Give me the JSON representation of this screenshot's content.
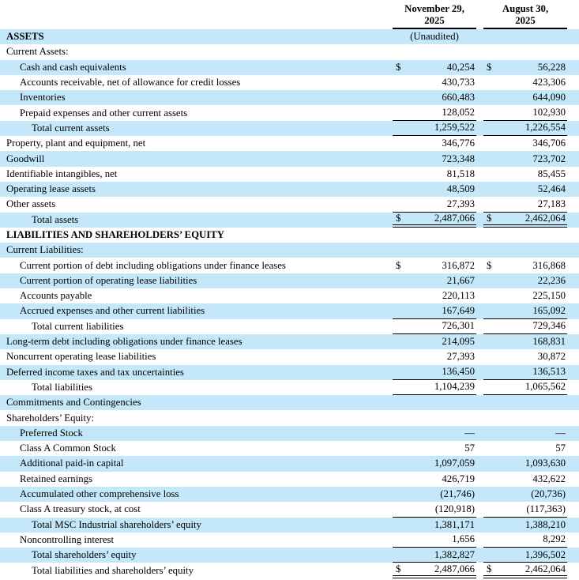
{
  "document": {
    "type": "condensed-consolidated-balance-sheet",
    "colors": {
      "row_highlight": "#c4e8fa",
      "rule": "#000000",
      "text": "#000000"
    },
    "table": {
      "columns": [
        {
          "line1": "November 29,",
          "line2": "2025"
        },
        {
          "line1": "August 30,",
          "line2": "2025"
        }
      ],
      "rows": [
        {
          "label": "ASSETS",
          "indent": 0,
          "bold": true,
          "shaded": true,
          "note1": "(Unaudited)",
          "d1": "",
          "v1": "",
          "d2": "",
          "v2": "",
          "rule": "none"
        },
        {
          "label": "Current Assets:",
          "indent": 0,
          "bold": false,
          "shaded": false,
          "d1": "",
          "v1": "",
          "d2": "",
          "v2": "",
          "rule": "none"
        },
        {
          "label": "Cash and cash equivalents",
          "indent": 1,
          "bold": false,
          "shaded": true,
          "d1": "$",
          "v1": "40,254",
          "d2": "$",
          "v2": "56,228",
          "rule": "none"
        },
        {
          "label": "Accounts receivable, net of allowance for credit losses",
          "indent": 1,
          "bold": false,
          "shaded": false,
          "d1": "",
          "v1": "430,733",
          "d2": "",
          "v2": "423,306",
          "rule": "none"
        },
        {
          "label": "Inventories",
          "indent": 1,
          "bold": false,
          "shaded": true,
          "d1": "",
          "v1": "660,483",
          "d2": "",
          "v2": "644,090",
          "rule": "none"
        },
        {
          "label": "Prepaid expenses and other current assets",
          "indent": 1,
          "bold": false,
          "shaded": false,
          "d1": "",
          "v1": "128,052",
          "d2": "",
          "v2": "102,930",
          "rule": "single"
        },
        {
          "label": "Total current assets",
          "indent": 2,
          "bold": false,
          "shaded": true,
          "d1": "",
          "v1": "1,259,522",
          "d2": "",
          "v2": "1,226,554",
          "rule": "single"
        },
        {
          "label": "Property, plant and equipment, net",
          "indent": 0,
          "bold": false,
          "shaded": false,
          "d1": "",
          "v1": "346,776",
          "d2": "",
          "v2": "346,706",
          "rule": "none"
        },
        {
          "label": "Goodwill",
          "indent": 0,
          "bold": false,
          "shaded": true,
          "d1": "",
          "v1": "723,348",
          "d2": "",
          "v2": "723,702",
          "rule": "none"
        },
        {
          "label": "Identifiable intangibles, net",
          "indent": 0,
          "bold": false,
          "shaded": false,
          "d1": "",
          "v1": "81,518",
          "d2": "",
          "v2": "85,455",
          "rule": "none"
        },
        {
          "label": "Operating lease assets",
          "indent": 0,
          "bold": false,
          "shaded": true,
          "d1": "",
          "v1": "48,509",
          "d2": "",
          "v2": "52,464",
          "rule": "none"
        },
        {
          "label": "Other assets",
          "indent": 0,
          "bold": false,
          "shaded": false,
          "d1": "",
          "v1": "27,393",
          "d2": "",
          "v2": "27,183",
          "rule": "single"
        },
        {
          "label": "Total assets",
          "indent": 2,
          "bold": false,
          "shaded": true,
          "d1": "$",
          "v1": "2,487,066",
          "d2": "$",
          "v2": "2,462,064",
          "rule": "double"
        },
        {
          "label": "LIABILITIES AND SHAREHOLDERS’ EQUITY",
          "indent": 0,
          "bold": true,
          "shaded": false,
          "d1": "",
          "v1": "",
          "d2": "",
          "v2": "",
          "rule": "none"
        },
        {
          "label": "Current Liabilities:",
          "indent": 0,
          "bold": false,
          "shaded": true,
          "d1": "",
          "v1": "",
          "d2": "",
          "v2": "",
          "rule": "none"
        },
        {
          "label": "Current portion of debt including obligations under finance leases",
          "indent": 1,
          "bold": false,
          "shaded": false,
          "d1": "$",
          "v1": "316,872",
          "d2": "$",
          "v2": "316,868",
          "rule": "none"
        },
        {
          "label": "Current portion of operating lease liabilities",
          "indent": 1,
          "bold": false,
          "shaded": true,
          "d1": "",
          "v1": "21,667",
          "d2": "",
          "v2": "22,236",
          "rule": "none"
        },
        {
          "label": "Accounts payable",
          "indent": 1,
          "bold": false,
          "shaded": false,
          "d1": "",
          "v1": "220,113",
          "d2": "",
          "v2": "225,150",
          "rule": "none"
        },
        {
          "label": "Accrued expenses and other current liabilities",
          "indent": 1,
          "bold": false,
          "shaded": true,
          "d1": "",
          "v1": "167,649",
          "d2": "",
          "v2": "165,092",
          "rule": "single"
        },
        {
          "label": "Total current liabilities",
          "indent": 2,
          "bold": false,
          "shaded": false,
          "d1": "",
          "v1": "726,301",
          "d2": "",
          "v2": "729,346",
          "rule": "single"
        },
        {
          "label": "Long-term debt including obligations under finance leases",
          "indent": 0,
          "bold": false,
          "shaded": true,
          "d1": "",
          "v1": "214,095",
          "d2": "",
          "v2": "168,831",
          "rule": "none"
        },
        {
          "label": "Noncurrent operating lease liabilities",
          "indent": 0,
          "bold": false,
          "shaded": false,
          "d1": "",
          "v1": "27,393",
          "d2": "",
          "v2": "30,872",
          "rule": "none"
        },
        {
          "label": "Deferred income taxes and tax uncertainties",
          "indent": 0,
          "bold": false,
          "shaded": true,
          "d1": "",
          "v1": "136,450",
          "d2": "",
          "v2": "136,513",
          "rule": "single"
        },
        {
          "label": "Total liabilities",
          "indent": 2,
          "bold": false,
          "shaded": false,
          "d1": "",
          "v1": "1,104,239",
          "d2": "",
          "v2": "1,065,562",
          "rule": "single"
        },
        {
          "label": "Commitments and Contingencies",
          "indent": 0,
          "bold": false,
          "shaded": true,
          "d1": "",
          "v1": "",
          "d2": "",
          "v2": "",
          "rule": "none"
        },
        {
          "label": "Shareholders’ Equity:",
          "indent": 0,
          "bold": false,
          "shaded": false,
          "d1": "",
          "v1": "",
          "d2": "",
          "v2": "",
          "rule": "none"
        },
        {
          "label": "Preferred Stock",
          "indent": 1,
          "bold": false,
          "shaded": true,
          "d1": "",
          "v1": "—",
          "d2": "",
          "v2": "—",
          "rule": "none"
        },
        {
          "label": "Class A Common Stock",
          "indent": 1,
          "bold": false,
          "shaded": false,
          "d1": "",
          "v1": "57",
          "d2": "",
          "v2": "57",
          "rule": "none"
        },
        {
          "label": "Additional paid-in capital",
          "indent": 1,
          "bold": false,
          "shaded": true,
          "d1": "",
          "v1": "1,097,059",
          "d2": "",
          "v2": "1,093,630",
          "rule": "none"
        },
        {
          "label": "Retained earnings",
          "indent": 1,
          "bold": false,
          "shaded": false,
          "d1": "",
          "v1": "426,719",
          "d2": "",
          "v2": "432,622",
          "rule": "none"
        },
        {
          "label": "Accumulated other comprehensive loss",
          "indent": 1,
          "bold": false,
          "shaded": true,
          "d1": "",
          "v1": "(21,746)",
          "d2": "",
          "v2": "(20,736)",
          "rule": "none"
        },
        {
          "label": "Class A treasury stock, at cost",
          "indent": 1,
          "bold": false,
          "shaded": false,
          "d1": "",
          "v1": "(120,918)",
          "d2": "",
          "v2": "(117,363)",
          "rule": "single"
        },
        {
          "label": "Total MSC Industrial shareholders’ equity",
          "indent": 2,
          "bold": false,
          "shaded": true,
          "d1": "",
          "v1": "1,381,171",
          "d2": "",
          "v2": "1,388,210",
          "rule": "none"
        },
        {
          "label": "Noncontrolling interest",
          "indent": 1,
          "bold": false,
          "shaded": false,
          "d1": "",
          "v1": "1,656",
          "d2": "",
          "v2": "8,292",
          "rule": "single"
        },
        {
          "label": "Total shareholders’ equity",
          "indent": 2,
          "bold": false,
          "shaded": true,
          "d1": "",
          "v1": "1,382,827",
          "d2": "",
          "v2": "1,396,502",
          "rule": "single"
        },
        {
          "label": "Total liabilities and shareholders’ equity",
          "indent": 2,
          "bold": false,
          "shaded": false,
          "d1": "$",
          "v1": "2,487,066",
          "d2": "$",
          "v2": "2,462,064",
          "rule": "double"
        }
      ]
    }
  }
}
